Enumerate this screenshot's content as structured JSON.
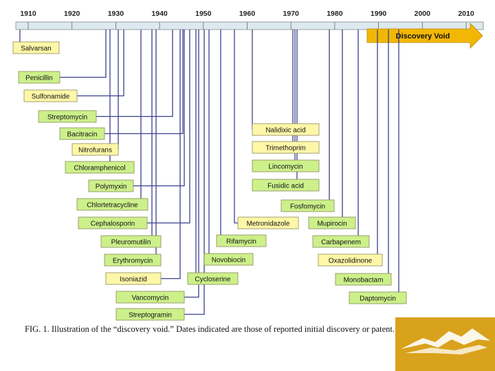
{
  "timeline": {
    "years": [
      "1910",
      "1920",
      "1930",
      "1940",
      "1950",
      "1960",
      "1970",
      "1980",
      "1990",
      "2000",
      "2010"
    ]
  },
  "void": {
    "label": "Discovery Void",
    "color": "#f2b705"
  },
  "colors": {
    "green": "#ccf08a",
    "yellow": "#fff7a8",
    "line": "#3a3f8f",
    "bar": "#dce9ef",
    "logo": "#d9a21c"
  },
  "drugs": [
    {
      "name": "Salvarsan",
      "fill": "yellow"
    },
    {
      "name": "Penicillin",
      "fill": "green"
    },
    {
      "name": "Sulfonamide",
      "fill": "yellow"
    },
    {
      "name": "Streptomycin",
      "fill": "green"
    },
    {
      "name": "Bacitracin",
      "fill": "green"
    },
    {
      "name": "Nitrofurans",
      "fill": "yellow"
    },
    {
      "name": "Chloramphenicol",
      "fill": "green"
    },
    {
      "name": "Polymyxin",
      "fill": "green"
    },
    {
      "name": "Chlortetracycline",
      "fill": "green"
    },
    {
      "name": "Cephalosporin",
      "fill": "green"
    },
    {
      "name": "Pleuromutilin",
      "fill": "green"
    },
    {
      "name": "Erythromycin",
      "fill": "green"
    },
    {
      "name": "Isoniazid",
      "fill": "yellow"
    },
    {
      "name": "Vancomycin",
      "fill": "green"
    },
    {
      "name": "Streptogramin",
      "fill": "green"
    },
    {
      "name": "Cycloserine",
      "fill": "green"
    },
    {
      "name": "Novobiocin",
      "fill": "green"
    },
    {
      "name": "Rifamycin",
      "fill": "green"
    },
    {
      "name": "Metronidazole",
      "fill": "yellow"
    },
    {
      "name": "Nalidixic acid",
      "fill": "yellow"
    },
    {
      "name": "Trimethoprim",
      "fill": "yellow"
    },
    {
      "name": "Lincomycin",
      "fill": "green"
    },
    {
      "name": "Fusidic acid",
      "fill": "green"
    },
    {
      "name": "Fosfomycin",
      "fill": "green"
    },
    {
      "name": "Mupirocin",
      "fill": "green"
    },
    {
      "name": "Carbapenem",
      "fill": "green"
    },
    {
      "name": "Oxazolidinone",
      "fill": "yellow"
    },
    {
      "name": "Monobactam",
      "fill": "green"
    },
    {
      "name": "Daptomycin",
      "fill": "green"
    }
  ],
  "caption": "FIG. 1. Illustration of the “discovery void.” Dates indicated are those of reported initial discovery or patent."
}
